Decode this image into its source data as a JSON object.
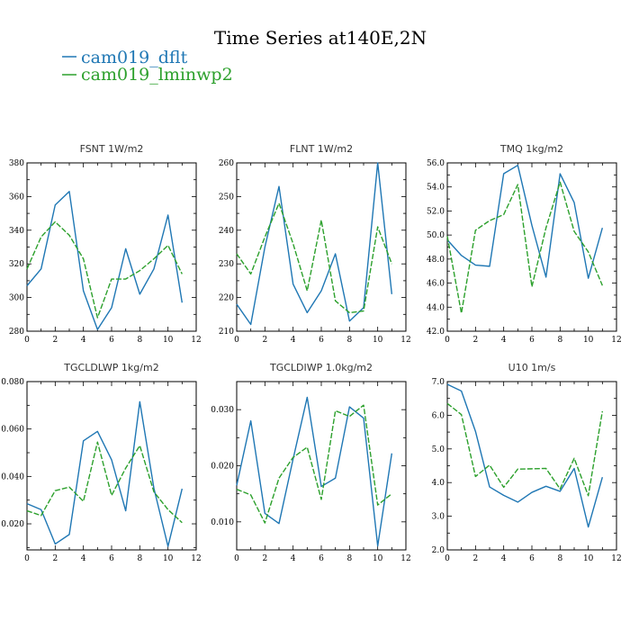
{
  "title": "Time Series at140E,2N",
  "legend": [
    {
      "label": "cam019_dflt",
      "color": "#1f77b4",
      "dash": "solid"
    },
    {
      "label": "cam019_lminwp2",
      "color": "#2ca02c",
      "dash": "dashed"
    }
  ],
  "chart_data": [
    {
      "type": "line",
      "title": "FSNT   1W/m2",
      "x": [
        0,
        1,
        2,
        3,
        4,
        5,
        6,
        7,
        8,
        9,
        10,
        11
      ],
      "xlim": [
        0,
        12
      ],
      "xticks": [
        0,
        2,
        4,
        6,
        8,
        10,
        12
      ],
      "ylim": [
        280,
        380
      ],
      "yticks": [
        280,
        300,
        320,
        340,
        360,
        380
      ],
      "ydec": 0,
      "series": [
        {
          "name": "cam019_dflt",
          "values": [
            307,
            317,
            355,
            363,
            304,
            281,
            294,
            329,
            302,
            317,
            349,
            297
          ]
        },
        {
          "name": "cam019_lminwp2",
          "values": [
            317,
            336,
            345,
            337,
            323,
            288,
            311,
            311,
            316,
            323,
            331,
            314
          ]
        }
      ]
    },
    {
      "type": "line",
      "title": "FLNT   1W/m2",
      "x": [
        0,
        1,
        2,
        3,
        4,
        5,
        6,
        7,
        8,
        9,
        10,
        11
      ],
      "xlim": [
        0,
        12
      ],
      "xticks": [
        0,
        2,
        4,
        6,
        8,
        10,
        12
      ],
      "ylim": [
        210,
        260
      ],
      "yticks": [
        210,
        220,
        230,
        240,
        250,
        260
      ],
      "ydec": 0,
      "series": [
        {
          "name": "cam019_dflt",
          "values": [
            218,
            212,
            235,
            253,
            224,
            215.5,
            222,
            233,
            213,
            217,
            260,
            221
          ]
        },
        {
          "name": "cam019_lminwp2",
          "values": [
            233,
            227,
            238,
            248,
            236,
            222,
            243,
            219,
            215.5,
            216,
            241,
            230
          ]
        }
      ]
    },
    {
      "type": "line",
      "title": "TMQ   1kg/m2",
      "x": [
        0,
        1,
        2,
        3,
        4,
        5,
        6,
        7,
        8,
        9,
        10,
        11
      ],
      "xlim": [
        0,
        12
      ],
      "xticks": [
        0,
        2,
        4,
        6,
        8,
        10,
        12
      ],
      "ylim": [
        42,
        56
      ],
      "yticks": [
        42,
        44,
        46,
        48,
        50,
        52,
        54,
        56
      ],
      "ydec": 1,
      "series": [
        {
          "name": "cam019_dflt",
          "values": [
            49.6,
            48.3,
            47.5,
            47.4,
            55.1,
            55.8,
            50.8,
            46.5,
            55.1,
            52.7,
            46.4,
            50.6
          ]
        },
        {
          "name": "cam019_lminwp2",
          "values": [
            49.9,
            43.5,
            50.4,
            51.2,
            51.7,
            54.2,
            45.7,
            50.6,
            54.4,
            50.3,
            48.6,
            45.8
          ]
        }
      ]
    },
    {
      "type": "line",
      "title": "TGCLDLWP   1kg/m2",
      "x": [
        0,
        1,
        2,
        3,
        4,
        5,
        6,
        7,
        8,
        9,
        10,
        11
      ],
      "xlim": [
        0,
        12
      ],
      "xticks": [
        0,
        2,
        4,
        6,
        8,
        10,
        12
      ],
      "ylim": [
        0.009,
        0.08
      ],
      "yticks": [
        0.02,
        0.04,
        0.06,
        0.08
      ],
      "ydec": 3,
      "series": [
        {
          "name": "cam019_dflt",
          "values": [
            0.0285,
            0.026,
            0.0115,
            0.0155,
            0.055,
            0.059,
            0.047,
            0.0255,
            0.0715,
            0.035,
            0.0105,
            0.0348
          ]
        },
        {
          "name": "cam019_lminwp2",
          "values": [
            0.0255,
            0.0235,
            0.034,
            0.0355,
            0.0295,
            0.0545,
            0.032,
            0.0435,
            0.053,
            0.0335,
            0.026,
            0.0205
          ]
        }
      ]
    },
    {
      "type": "line",
      "title": "TGCLDIWP   1.0kg/m2",
      "x": [
        0,
        1,
        2,
        3,
        4,
        5,
        6,
        7,
        8,
        9,
        10,
        11
      ],
      "xlim": [
        0,
        12
      ],
      "xticks": [
        0,
        2,
        4,
        6,
        8,
        10,
        12
      ],
      "ylim": [
        0.005,
        0.035
      ],
      "yticks": [
        0.01,
        0.02,
        0.03
      ],
      "ydec": 3,
      "series": [
        {
          "name": "cam019_dflt",
          "values": [
            0.0165,
            0.028,
            0.0115,
            0.0097,
            0.0212,
            0.0322,
            0.0163,
            0.0178,
            0.0305,
            0.0285,
            0.0057,
            0.0222
          ]
        },
        {
          "name": "cam019_lminwp2",
          "values": [
            0.0158,
            0.0148,
            0.0098,
            0.0178,
            0.0215,
            0.0233,
            0.014,
            0.0298,
            0.0288,
            0.0308,
            0.013,
            0.015
          ]
        }
      ]
    },
    {
      "type": "line",
      "title": "U10   1m/s",
      "x": [
        0,
        1,
        2,
        3,
        4,
        5,
        6,
        7,
        8,
        9,
        10,
        11
      ],
      "xlim": [
        0,
        12
      ],
      "xticks": [
        0,
        2,
        4,
        6,
        8,
        10,
        12
      ],
      "ylim": [
        2,
        7
      ],
      "yticks": [
        2,
        3,
        4,
        5,
        6,
        7
      ],
      "ydec": 1,
      "series": [
        {
          "name": "cam019_dflt",
          "values": [
            6.92,
            6.72,
            5.52,
            3.87,
            3.62,
            3.42,
            3.71,
            3.89,
            3.74,
            4.42,
            2.68,
            4.16
          ]
        },
        {
          "name": "cam019_lminwp2",
          "values": [
            6.35,
            6.02,
            4.18,
            4.52,
            3.86,
            4.4,
            4.41,
            4.42,
            3.81,
            4.72,
            3.61,
            6.12
          ]
        }
      ]
    }
  ]
}
